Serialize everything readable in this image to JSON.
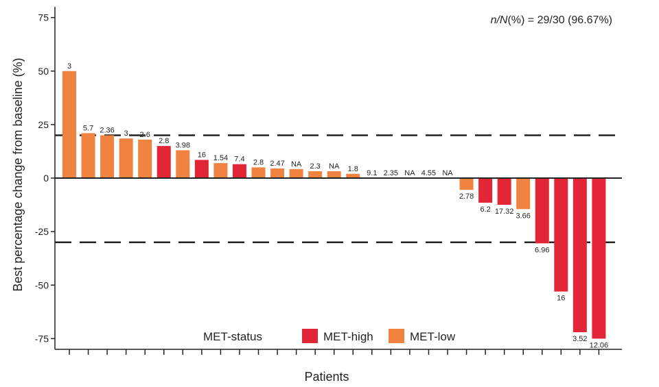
{
  "chart_data": {
    "type": "bar",
    "title": "",
    "xlabel": "Patients",
    "ylabel": "Best percentage change from baseline (%)",
    "ylim": [
      -80,
      80
    ],
    "yticks": [
      75,
      50,
      25,
      0,
      -25,
      -50,
      -75
    ],
    "ytick_labels": [
      "75",
      "50",
      "25",
      "0",
      "-25",
      "-50",
      "-75"
    ],
    "reference_lines": [
      20,
      -30
    ],
    "annotation": {
      "prefix_italic": "n/N",
      "text": "(%) = 29/30 (96.67%)"
    },
    "legend": {
      "title": "MET-status",
      "entries": [
        {
          "name": "MET-high",
          "color": "#e32636"
        },
        {
          "name": "MET-low",
          "color": "#f08340"
        }
      ]
    },
    "colors": {
      "MET-high": "#e32636",
      "MET-low": "#f08340"
    },
    "bars": [
      {
        "value": 50,
        "group": "MET-low",
        "label": "3"
      },
      {
        "value": 21,
        "group": "MET-low",
        "label": "5.7"
      },
      {
        "value": 20,
        "group": "MET-low",
        "label": "2.36"
      },
      {
        "value": 18.5,
        "group": "MET-low",
        "label": "3"
      },
      {
        "value": 18,
        "group": "MET-low",
        "label": "2.6"
      },
      {
        "value": 15,
        "group": "MET-high",
        "label": "2.8"
      },
      {
        "value": 13,
        "group": "MET-low",
        "label": "3.98"
      },
      {
        "value": 8.5,
        "group": "MET-high",
        "label": "16"
      },
      {
        "value": 7,
        "group": "MET-low",
        "label": "1.54"
      },
      {
        "value": 6.5,
        "group": "MET-high",
        "label": "7.4"
      },
      {
        "value": 5,
        "group": "MET-low",
        "label": "2.8"
      },
      {
        "value": 4.5,
        "group": "MET-low",
        "label": "2.47"
      },
      {
        "value": 4.2,
        "group": "MET-low",
        "label": "NA"
      },
      {
        "value": 3.2,
        "group": "MET-low",
        "label": "2.3"
      },
      {
        "value": 3.2,
        "group": "MET-low",
        "label": "NA"
      },
      {
        "value": 2,
        "group": "MET-low",
        "label": "1.8"
      },
      {
        "value": 0,
        "group": "MET-low",
        "label": "9.1"
      },
      {
        "value": 0,
        "group": "MET-low",
        "label": "2.35"
      },
      {
        "value": 0,
        "group": "MET-low",
        "label": "NA"
      },
      {
        "value": 0,
        "group": "MET-low",
        "label": "4.55"
      },
      {
        "value": 0,
        "group": "MET-low",
        "label": "NA"
      },
      {
        "value": -5.5,
        "group": "MET-low",
        "label": "2.78"
      },
      {
        "value": -11.5,
        "group": "MET-high",
        "label": "6.2"
      },
      {
        "value": -12.5,
        "group": "MET-high",
        "label": "17.32"
      },
      {
        "value": -14.5,
        "group": "MET-low",
        "label": "3.66"
      },
      {
        "value": -30.5,
        "group": "MET-high",
        "label": "6.96"
      },
      {
        "value": -53,
        "group": "MET-high",
        "label": "16"
      },
      {
        "value": -72,
        "group": "MET-high",
        "label": "3.52"
      },
      {
        "value": -75,
        "group": "MET-high",
        "label": "12.06"
      }
    ]
  }
}
